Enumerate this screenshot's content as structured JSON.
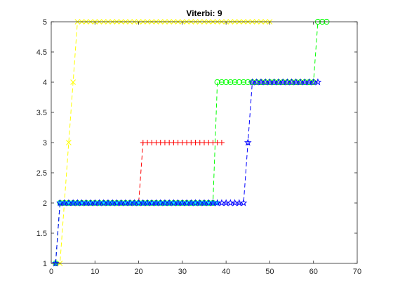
{
  "chart_data": {
    "type": "line",
    "title": "Viterbi: 9",
    "xlabel": "",
    "ylabel": "",
    "xlim": [
      0,
      70
    ],
    "ylim": [
      1,
      5
    ],
    "xticks": [
      0,
      10,
      20,
      30,
      40,
      50,
      60,
      70
    ],
    "yticks": [
      1,
      1.5,
      2,
      2.5,
      3,
      3.5,
      4,
      4.5,
      5
    ],
    "grid": false,
    "legend": "none",
    "series": [
      {
        "color": "#ffff00",
        "marker": "x",
        "line": "dashed",
        "segments": [
          {
            "x": [
              1,
              2
            ],
            "y": 1
          },
          {
            "x": [
              3,
              3
            ],
            "y": 2
          },
          {
            "x": [
              4,
              4
            ],
            "y": 3
          },
          {
            "x": [
              5,
              5
            ],
            "y": 4
          },
          {
            "x": [
              6,
              50
            ],
            "y": 5
          }
        ]
      },
      {
        "color": "#00ff00",
        "marker": "o",
        "line": "dashed",
        "segments": [
          {
            "x": [
              1,
              1
            ],
            "y": 1
          },
          {
            "x": [
              2,
              37
            ],
            "y": 2
          },
          {
            "x": [
              38,
              60
            ],
            "y": 4
          },
          {
            "x": [
              61,
              63
            ],
            "y": 5
          }
        ]
      },
      {
        "color": "#ff0000",
        "marker": "+",
        "line": "dashed",
        "segments": [
          {
            "x": [
              1,
              1
            ],
            "y": 1
          },
          {
            "x": [
              2,
              20
            ],
            "y": 2
          },
          {
            "x": [
              21,
              39
            ],
            "y": 3
          }
        ]
      },
      {
        "color": "#00ffff",
        "marker": "*",
        "line": "dashed",
        "segments": [
          {
            "x": [
              1,
              1
            ],
            "y": 1
          },
          {
            "x": [
              2,
              38
            ],
            "y": 2
          }
        ]
      },
      {
        "color": "#0000ff",
        "marker": "pentagram",
        "line": "dashed",
        "segments": [
          {
            "x": [
              1,
              1
            ],
            "y": 1
          },
          {
            "x": [
              2,
              44
            ],
            "y": 2
          },
          {
            "x": [
              45,
              45
            ],
            "y": 3
          },
          {
            "x": [
              46,
              61
            ],
            "y": 4
          }
        ]
      }
    ]
  }
}
